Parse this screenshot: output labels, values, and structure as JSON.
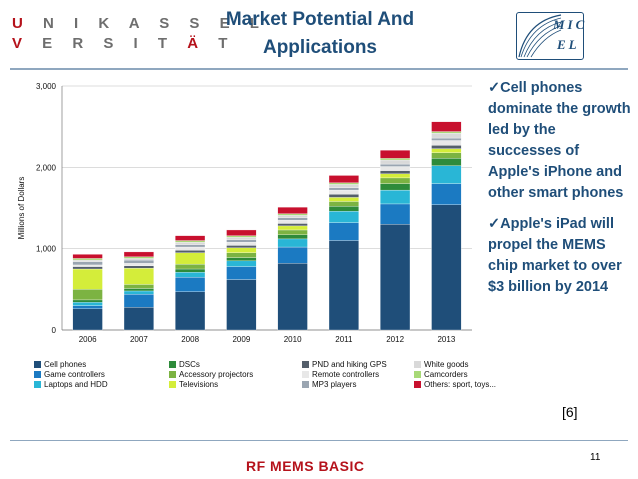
{
  "header": {
    "logo_line1": "UNIKASSEL",
    "logo_line2_a": "VERSIT",
    "logo_line2_b": "ÄT",
    "title_line1": "Market Potential And",
    "title_line2": "Applications",
    "micel_top": "MIC",
    "micel_bottom": "EL"
  },
  "notes": [
    "✓Cell phones dominate the growth led by the successes of Apple's iPhone and other smart phones",
    "✓Apple's iPad will propel the MEMS chip market to over $3 billion by 2014"
  ],
  "reference": "[6]",
  "page_number": "11",
  "footer": "RF MEMS BASIC",
  "colors": {
    "title": "#1f4e79",
    "accent_red": "#b5121b"
  },
  "chart_data": {
    "type": "bar",
    "stacked": true,
    "ylabel": "Millions of Dollars",
    "ylim": [
      0,
      3000
    ],
    "yticks": [
      0,
      1000,
      2000,
      3000
    ],
    "ytick_labels": [
      "0",
      "1,000",
      "2,000",
      "3,000"
    ],
    "categories": [
      "2006",
      "2007",
      "2008",
      "2009",
      "2010",
      "2011",
      "2012",
      "2013"
    ],
    "series": [
      {
        "name": "Cell phones",
        "color": "#1f4e79",
        "values": [
          260,
          280,
          470,
          620,
          820,
          1100,
          1300,
          1540
        ]
      },
      {
        "name": "Game controllers",
        "color": "#1b7ac2",
        "values": [
          40,
          160,
          180,
          160,
          200,
          220,
          250,
          260
        ]
      },
      {
        "name": "Laptops and HDD",
        "color": "#29b6d6",
        "values": [
          40,
          40,
          60,
          70,
          100,
          140,
          170,
          220
        ]
      },
      {
        "name": "DSCs",
        "color": "#2e8b3a",
        "values": [
          30,
          30,
          40,
          40,
          50,
          60,
          80,
          90
        ]
      },
      {
        "name": "Accessory projectors",
        "color": "#7cb342",
        "values": [
          130,
          50,
          60,
          60,
          60,
          60,
          70,
          70
        ]
      },
      {
        "name": "Televisions",
        "color": "#d4ed3a",
        "values": [
          250,
          200,
          140,
          60,
          50,
          50,
          50,
          50
        ]
      },
      {
        "name": "PND and hiking GPS",
        "color": "#555f6b",
        "values": [
          30,
          30,
          30,
          30,
          30,
          40,
          40,
          40
        ]
      },
      {
        "name": "Remote controllers",
        "color": "#e8e8e8",
        "values": [
          20,
          30,
          40,
          40,
          40,
          50,
          50,
          60
        ]
      },
      {
        "name": "MP3 players",
        "color": "#9aa5b1",
        "values": [
          40,
          40,
          30,
          30,
          30,
          30,
          30,
          30
        ]
      },
      {
        "name": "White goods",
        "color": "#d9d9d9",
        "values": [
          20,
          20,
          30,
          30,
          30,
          40,
          50,
          60
        ]
      },
      {
        "name": "Camcorders",
        "color": "#a8d977",
        "values": [
          20,
          20,
          20,
          20,
          20,
          20,
          20,
          20
        ]
      },
      {
        "name": "Others: sport, toys...",
        "color": "#c8102e",
        "values": [
          50,
          60,
          60,
          70,
          80,
          90,
          100,
          120
        ]
      }
    ]
  }
}
